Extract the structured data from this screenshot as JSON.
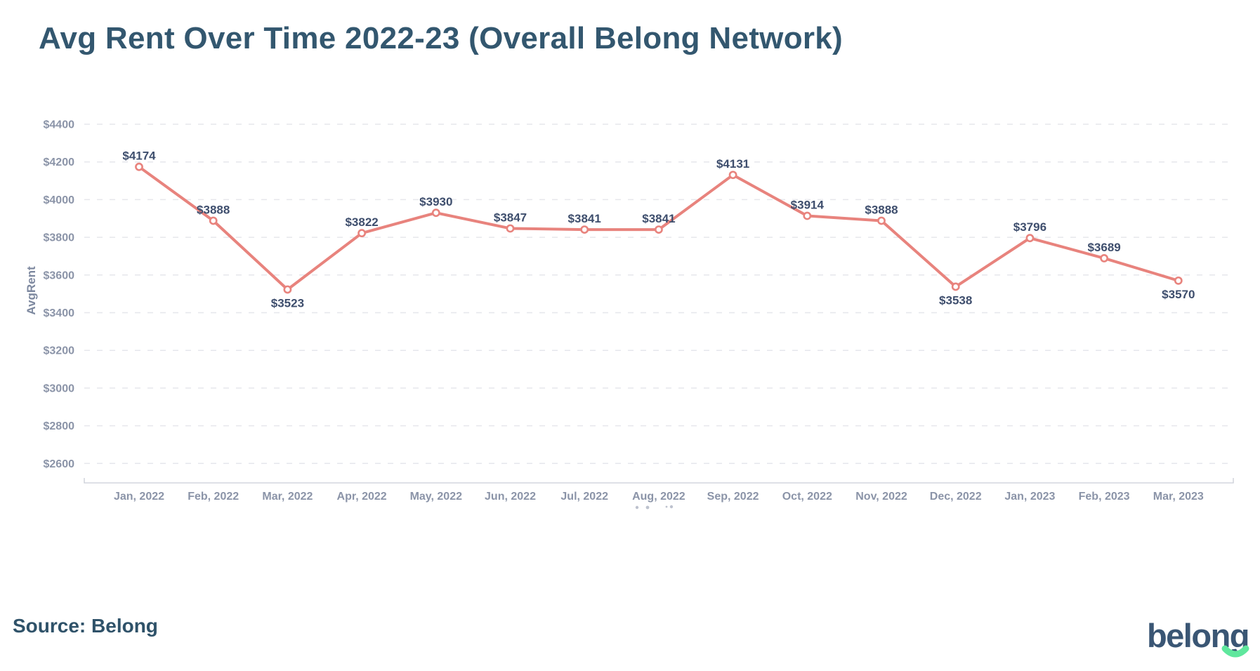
{
  "page": {
    "title": "Avg Rent Over Time 2022-23 (Overall Belong Network)",
    "source_label": "Source: Belong",
    "logo_text": "belong"
  },
  "colors": {
    "title_text": "#33576F",
    "line": "#E8837D",
    "marker_fill": "#FFFFFF",
    "data_label": "#3E4E6D",
    "axis_tick_text": "#8B94A8",
    "axis_title_text": "#7E89A0",
    "gridline": "#E6E7EC",
    "axis_line": "#C9CDD6",
    "logo_text": "#3A5674",
    "logo_smile": "#5FE79D",
    "artifact_dots": "#A7AEBD"
  },
  "chart_data": {
    "type": "line",
    "title": "Avg Rent Over Time 2022-23 (Overall Belong Network)",
    "xlabel": "",
    "ylabel": "AvgRent",
    "x": [
      "Jan, 2022",
      "Feb, 2022",
      "Mar, 2022",
      "Apr, 2022",
      "May, 2022",
      "Jun, 2022",
      "Jul, 2022",
      "Aug, 2022",
      "Sep, 2022",
      "Oct, 2022",
      "Nov, 2022",
      "Dec, 2022",
      "Jan, 2023",
      "Feb, 2023",
      "Mar, 2023"
    ],
    "series": [
      {
        "name": "AvgRent",
        "values": [
          4174,
          3888,
          3523,
          3822,
          3930,
          3847,
          3841,
          3841,
          4131,
          3914,
          3888,
          3538,
          3796,
          3689,
          3570
        ]
      }
    ],
    "data_label_prefix": "$",
    "data_labels": [
      "$4174",
      "$3888",
      "$3523",
      "$3822",
      "$3930",
      "$3847",
      "$3841",
      "$3841",
      "$4131",
      "$3914",
      "$3888",
      "$3538",
      "$3796",
      "$3689",
      "$3570"
    ],
    "label_side": [
      "above",
      "above",
      "below",
      "above",
      "above",
      "above",
      "above",
      "above",
      "above",
      "above",
      "above",
      "below",
      "above",
      "above",
      "below"
    ],
    "ylim": [
      2600,
      4400
    ],
    "ytick_step": 200,
    "ytick_prefix": "$",
    "ytick_labels": [
      "$2600",
      "$2800",
      "$3000",
      "$3200",
      "$3400",
      "$3600",
      "$3800",
      "$4000",
      "$4200",
      "$4400"
    ],
    "grid": "horizontal-dashed",
    "legend": "none",
    "marker": "open-circle"
  }
}
